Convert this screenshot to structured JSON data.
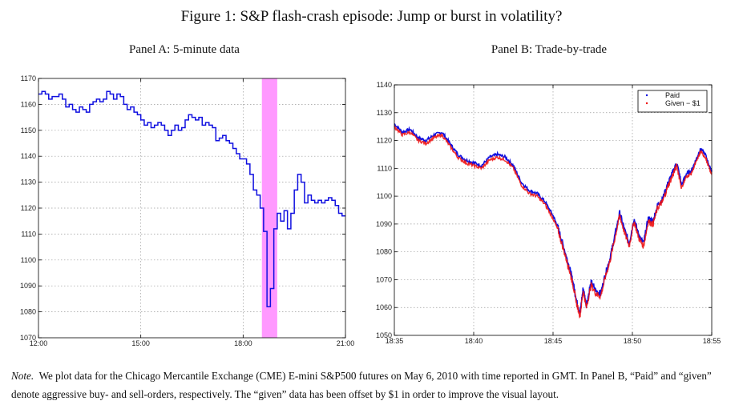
{
  "figure": {
    "title": "Figure 1: S&P flash-crash episode: Jump or burst in volatility?",
    "note_label": "Note.",
    "note_text": "We plot data for the Chicago Mercantile Exchange (CME) E-mini S&P500 futures on May 6, 2010 with time reported in GMT. In Panel B, “Paid” and “given” denote aggressive buy- and sell-orders, respectively. The “given” data has been offset by $1 in order to improve the visual layout."
  },
  "colors": {
    "line": "#1010e0",
    "line_red": "#ee1111",
    "shade": "#ff99ff",
    "grid": "#9a9a9a"
  },
  "chart_data": [
    {
      "type": "line",
      "title": "Panel A: 5-minute data",
      "x_unit": "hours GMT",
      "x_tick_labels": [
        "12:00",
        "15:00",
        "18:00",
        "21:00"
      ],
      "x_ticks": [
        12,
        15,
        18,
        21
      ],
      "xlim": [
        12,
        21
      ],
      "ylim": [
        1070,
        1170
      ],
      "y_ticks": [
        1070,
        1080,
        1090,
        1100,
        1110,
        1120,
        1130,
        1140,
        1150,
        1160,
        1170
      ],
      "grid": true,
      "shaded_region": [
        18.55,
        19.0
      ],
      "series": [
        {
          "step": true,
          "x": [
            12.0,
            12.1,
            12.2,
            12.3,
            12.4,
            12.5,
            12.6,
            12.7,
            12.8,
            12.9,
            13.0,
            13.1,
            13.2,
            13.3,
            13.4,
            13.5,
            13.6,
            13.7,
            13.8,
            13.9,
            14.0,
            14.1,
            14.2,
            14.3,
            14.4,
            14.5,
            14.6,
            14.7,
            14.8,
            14.9,
            15.0,
            15.1,
            15.2,
            15.3,
            15.4,
            15.5,
            15.6,
            15.7,
            15.8,
            15.9,
            16.0,
            16.1,
            16.2,
            16.3,
            16.4,
            16.5,
            16.6,
            16.7,
            16.8,
            16.9,
            17.0,
            17.1,
            17.2,
            17.3,
            17.4,
            17.5,
            17.6,
            17.7,
            17.8,
            17.9,
            18.0,
            18.1,
            18.2,
            18.3,
            18.4,
            18.5,
            18.6,
            18.7,
            18.8,
            18.9,
            19.0,
            19.1,
            19.2,
            19.3,
            19.4,
            19.5,
            19.6,
            19.7,
            19.8,
            19.9,
            20.0,
            20.1,
            20.2,
            20.3,
            20.4,
            20.5,
            20.6,
            20.7,
            20.8,
            20.9,
            21.0
          ],
          "values": [
            1164,
            1165,
            1164,
            1162,
            1163,
            1163,
            1164,
            1162,
            1159,
            1160,
            1158,
            1157,
            1159,
            1158,
            1157,
            1160,
            1161,
            1162,
            1161,
            1162,
            1165,
            1164,
            1162,
            1164,
            1163,
            1160,
            1158,
            1159,
            1157,
            1156,
            1154,
            1152,
            1153,
            1151,
            1152,
            1153,
            1152,
            1150,
            1148,
            1150,
            1152,
            1150,
            1151,
            1154,
            1156,
            1155,
            1154,
            1155,
            1152,
            1153,
            1152,
            1151,
            1146,
            1147,
            1148,
            1146,
            1145,
            1143,
            1141,
            1139,
            1139,
            1137,
            1133,
            1127,
            1125,
            1120,
            1111,
            1082,
            1089,
            1112,
            1118,
            1115,
            1119,
            1112,
            1118,
            1127,
            1133,
            1130,
            1122,
            1125,
            1123,
            1122,
            1123,
            1122,
            1123,
            1124,
            1123,
            1121,
            1118,
            1117,
            1117
          ]
        }
      ]
    },
    {
      "type": "line",
      "title": "Panel B: Trade-by-trade",
      "x_unit": "minutes GMT",
      "x_tick_labels": [
        "18:35",
        "18:40",
        "18:45",
        "18:50",
        "18:55"
      ],
      "x_ticks": [
        0,
        5,
        10,
        15,
        20
      ],
      "xlim": [
        0,
        20
      ],
      "ylim": [
        1050,
        1140
      ],
      "y_ticks": [
        1050,
        1060,
        1070,
        1080,
        1090,
        1100,
        1110,
        1120,
        1130,
        1140
      ],
      "grid": true,
      "legend": {
        "position": "top-right",
        "entries": [
          "Paid",
          "Given − $1"
        ]
      },
      "series": [
        {
          "name": "Paid",
          "x": [
            0,
            0.5,
            1.0,
            1.5,
            2.0,
            2.5,
            3.0,
            3.5,
            4.0,
            4.5,
            5.0,
            5.5,
            6.0,
            6.5,
            7.0,
            7.5,
            8.0,
            8.5,
            9.0,
            9.5,
            10.0,
            10.3,
            10.6,
            10.9,
            11.1,
            11.3,
            11.5,
            11.7,
            11.9,
            12.1,
            12.4,
            12.7,
            13.0,
            13.3,
            13.6,
            13.9,
            14.2,
            14.5,
            14.8,
            15.1,
            15.4,
            15.7,
            16.0,
            16.3,
            16.6,
            16.9,
            17.2,
            17.5,
            17.8,
            18.1,
            18.4,
            18.7,
            19.0,
            19.3,
            19.6,
            19.9,
            20.0
          ],
          "values": [
            1126,
            1123,
            1124,
            1121,
            1120,
            1122,
            1123,
            1119,
            1115,
            1113,
            1112,
            1111,
            1114,
            1115,
            1114,
            1111,
            1105,
            1102,
            1101,
            1098,
            1093,
            1089,
            1083,
            1077,
            1073,
            1068,
            1062,
            1058,
            1067,
            1061,
            1069,
            1066,
            1065,
            1072,
            1078,
            1086,
            1094,
            1088,
            1083,
            1092,
            1086,
            1083,
            1092,
            1091,
            1097,
            1099,
            1104,
            1108,
            1112,
            1104,
            1108,
            1109,
            1113,
            1117,
            1115,
            1110,
            1109
          ]
        },
        {
          "name": "Given − $1",
          "offset": -1
        }
      ]
    }
  ]
}
